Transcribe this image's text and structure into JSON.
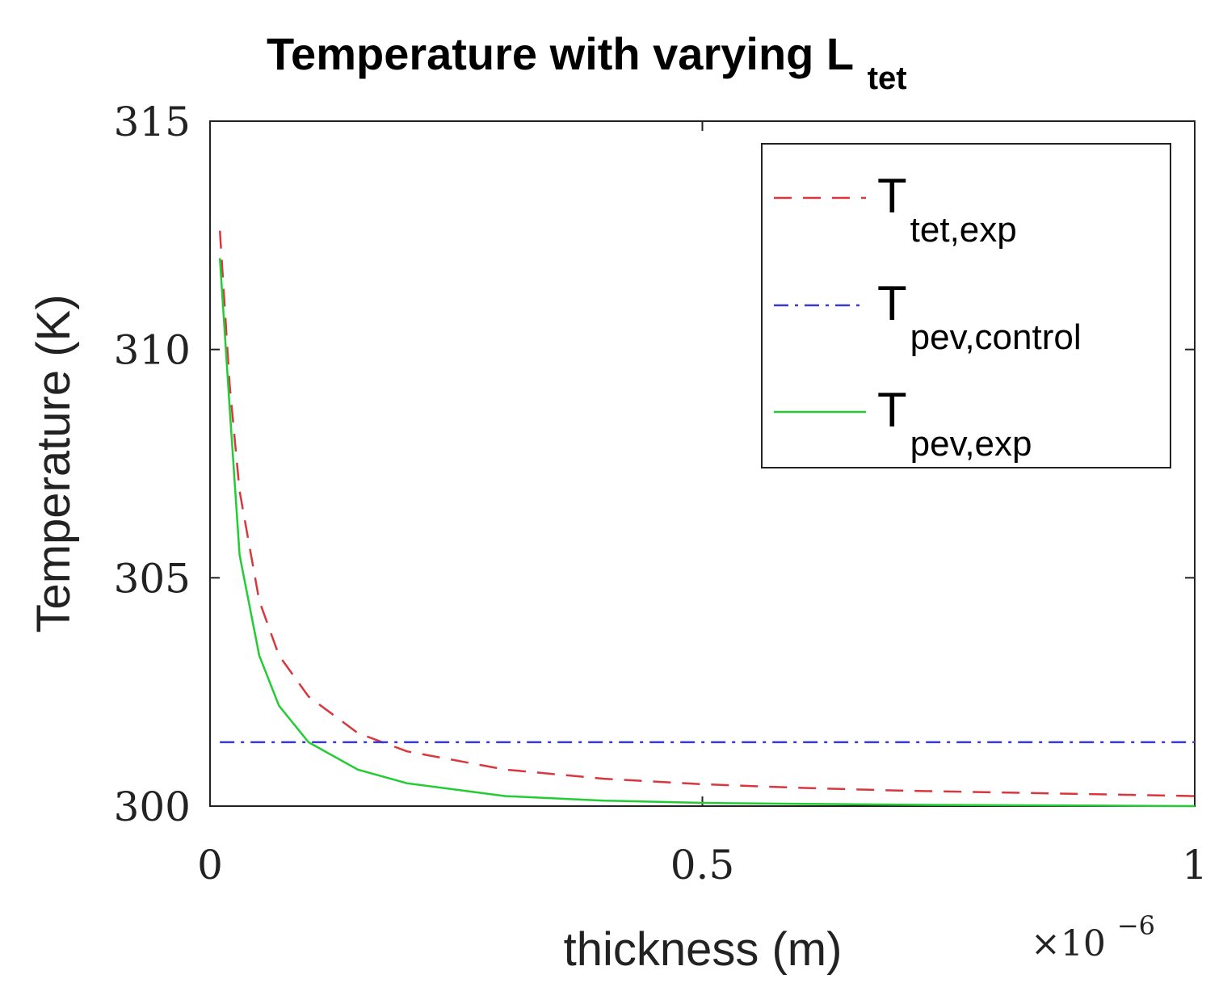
{
  "chart_data": {
    "type": "line",
    "title": {
      "main": "Temperature with varying L",
      "subscript": "tet"
    },
    "xlabel": "thickness (m)",
    "x_multiplier": {
      "base": "×10",
      "exponent": "−6"
    },
    "ylabel": "Temperature (K)",
    "xlim": [
      0,
      1
    ],
    "ylim": [
      300,
      315
    ],
    "xticks": [
      0,
      0.5,
      1
    ],
    "xtick_labels": [
      "0",
      "0.5",
      "1"
    ],
    "yticks": [
      300,
      305,
      310,
      315
    ],
    "ytick_labels": [
      "300",
      "305",
      "310",
      "315"
    ],
    "grid": false,
    "legend_position": "top-right",
    "series": [
      {
        "name": "T tet,exp",
        "legend_main": "T",
        "legend_sub": "tet,exp",
        "color": "#d9363e",
        "style": "dashed",
        "x": [
          0.01,
          0.02,
          0.03,
          0.05,
          0.07,
          0.1,
          0.15,
          0.2,
          0.3,
          0.4,
          0.5,
          0.6,
          0.7,
          0.8,
          0.9,
          1.0
        ],
        "y": [
          312.6,
          309.2,
          306.9,
          304.5,
          303.3,
          302.4,
          301.6,
          301.2,
          300.8,
          300.6,
          300.48,
          300.4,
          300.34,
          300.3,
          300.26,
          300.22
        ]
      },
      {
        "name": "T pev,control",
        "legend_main": "T",
        "legend_sub": "pev,control",
        "color": "#3a3acc",
        "style": "dashdot",
        "x": [
          0.01,
          1.0
        ],
        "y": [
          301.4,
          301.4
        ]
      },
      {
        "name": "T pev,exp",
        "legend_main": "T",
        "legend_sub": "pev,exp",
        "color": "#22cc33",
        "style": "solid",
        "x": [
          0.01,
          0.02,
          0.03,
          0.05,
          0.07,
          0.1,
          0.15,
          0.2,
          0.3,
          0.4,
          0.5,
          0.6,
          0.7,
          0.8,
          0.9,
          1.0
        ],
        "y": [
          312.0,
          308.7,
          305.5,
          303.3,
          302.2,
          301.4,
          300.8,
          300.5,
          300.22,
          300.12,
          300.07,
          300.05,
          300.03,
          300.02,
          300.01,
          300.0
        ]
      }
    ]
  }
}
